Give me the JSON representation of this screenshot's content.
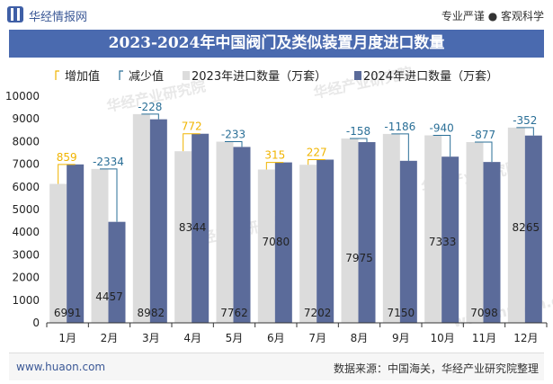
{
  "header": {
    "brand": "华经情报网",
    "tagline": "专业严谨 ● 客观科学",
    "title": "2023-2024年中国阀门及类似装置月度进口数量"
  },
  "footer": {
    "url": "www.huaon.com",
    "source": "数据来源：中国海关，华经产业研究院整理"
  },
  "watermarks": [
    "华经产业研究院",
    "华经产业研究院",
    "华经产业研究院",
    "华经产业研究院",
    "www.huaon.com"
  ],
  "colors": {
    "series2023": "#dcdcdc",
    "series2024": "#5b6b9a",
    "increase": "#f0b400",
    "decrease": "#2a6f97",
    "title_bar": "#4a6aaf"
  },
  "chart_data": {
    "type": "bar",
    "categories": [
      "1月",
      "2月",
      "3月",
      "4月",
      "5月",
      "6月",
      "7月",
      "8月",
      "9月",
      "10月",
      "11月",
      "12月"
    ],
    "series": [
      {
        "name": "2023年进口数量（万套）",
        "values": [
          6132,
          6791,
          9210,
          7572,
          7995,
          6765,
          6975,
          8133,
          8336,
          8273,
          7975,
          8617
        ]
      },
      {
        "name": "2024年进口数量（万套）",
        "values": [
          6991,
          4457,
          8982,
          8344,
          7762,
          7080,
          7202,
          7975,
          7150,
          7333,
          7098,
          8265
        ]
      }
    ],
    "changes": [
      859,
      -2334,
      -228,
      772,
      -233,
      315,
      227,
      -158,
      -1186,
      -940,
      -877,
      -352
    ],
    "change_labels": [
      "859",
      "-2334",
      "-228",
      "772",
      "-233",
      "315",
      "227",
      "-158",
      "-1186",
      "-940",
      "-877",
      "-352"
    ],
    "value_labels_2024": [
      "6991",
      "4457",
      "8982",
      "8344",
      "7762",
      "7080",
      "7202",
      "7975",
      "7150",
      "7333",
      "7098",
      "8265"
    ],
    "legend": [
      "增加值",
      "减少值",
      "2023年进口数量（万套）",
      "2024年进口数量（万套）"
    ],
    "legend_position": "top",
    "ylim": [
      0,
      10000
    ],
    "yticks": [
      "0",
      "1000",
      "2000",
      "3000",
      "4000",
      "5000",
      "6000",
      "7000",
      "8000",
      "9000",
      "10000"
    ],
    "grid": false
  }
}
